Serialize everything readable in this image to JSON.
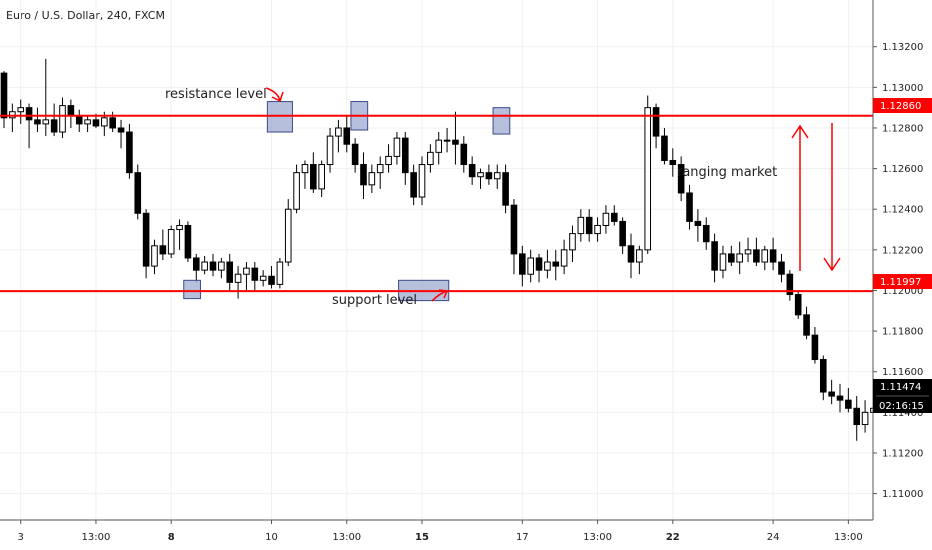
{
  "chart_data": {
    "type": "candlestick",
    "title": "Euro / U.S. Dollar, 240, FXCM",
    "y_ticks": [
      1.11,
      1.112,
      1.114,
      1.116,
      1.118,
      1.12,
      1.122,
      1.124,
      1.126,
      1.128,
      1.13,
      1.132
    ],
    "y_tick_labels": [
      "1.11000",
      "1.11200",
      "1.11400",
      "1.11600",
      "1.11800",
      "1.12000",
      "1.12200",
      "1.12400",
      "1.12600",
      "1.12800",
      "1.13000",
      "1.13200"
    ],
    "ylim": [
      1.1087,
      1.1343
    ],
    "x_ticks": [
      {
        "i": 2,
        "label": "3",
        "bold": false
      },
      {
        "i": 11,
        "label": "13:00",
        "bold": false
      },
      {
        "i": 20,
        "label": "8",
        "bold": true
      },
      {
        "i": 32,
        "label": "10",
        "bold": false
      },
      {
        "i": 41,
        "label": "13:00",
        "bold": false
      },
      {
        "i": 50,
        "label": "15",
        "bold": true
      },
      {
        "i": 62,
        "label": "17",
        "bold": false
      },
      {
        "i": 71,
        "label": "13:00",
        "bold": false
      },
      {
        "i": 80,
        "label": "22",
        "bold": true
      },
      {
        "i": 92,
        "label": "24",
        "bold": false
      },
      {
        "i": 101,
        "label": "13:00",
        "bold": false
      }
    ],
    "candles": [
      [
        1.1307,
        1.1308,
        1.128,
        1.1285
      ],
      [
        1.1285,
        1.1292,
        1.1278,
        1.1288
      ],
      [
        1.1288,
        1.1294,
        1.1282,
        1.129
      ],
      [
        1.129,
        1.1292,
        1.127,
        1.1284
      ],
      [
        1.1284,
        1.129,
        1.1278,
        1.1282
      ],
      [
        1.1282,
        1.1314,
        1.1276,
        1.1284
      ],
      [
        1.1284,
        1.1292,
        1.1276,
        1.1278
      ],
      [
        1.1278,
        1.1295,
        1.1275,
        1.1291
      ],
      [
        1.1291,
        1.1294,
        1.128,
        1.1286
      ],
      [
        1.1286,
        1.1289,
        1.1278,
        1.1282
      ],
      [
        1.1282,
        1.1286,
        1.1278,
        1.1284
      ],
      [
        1.1284,
        1.1287,
        1.128,
        1.1281
      ],
      [
        1.1281,
        1.1288,
        1.1276,
        1.1285
      ],
      [
        1.1285,
        1.1288,
        1.1278,
        1.128
      ],
      [
        1.128,
        1.1284,
        1.127,
        1.1278
      ],
      [
        1.1278,
        1.1282,
        1.1255,
        1.1258
      ],
      [
        1.1258,
        1.1262,
        1.1235,
        1.1238
      ],
      [
        1.1238,
        1.124,
        1.1206,
        1.1212
      ],
      [
        1.1212,
        1.1225,
        1.1208,
        1.1222
      ],
      [
        1.1222,
        1.123,
        1.1215,
        1.1218
      ],
      [
        1.1218,
        1.1232,
        1.1216,
        1.123
      ],
      [
        1.123,
        1.1235,
        1.122,
        1.1232
      ],
      [
        1.1232,
        1.1234,
        1.1214,
        1.1216
      ],
      [
        1.1216,
        1.1218,
        1.1204,
        1.121
      ],
      [
        1.121,
        1.1217,
        1.1208,
        1.1214
      ],
      [
        1.1214,
        1.1218,
        1.1207,
        1.121
      ],
      [
        1.121,
        1.1216,
        1.1206,
        1.1214
      ],
      [
        1.1214,
        1.1218,
        1.12,
        1.1204
      ],
      [
        1.1204,
        1.1212,
        1.1196,
        1.1208
      ],
      [
        1.1208,
        1.1214,
        1.12,
        1.1211
      ],
      [
        1.1211,
        1.1214,
        1.12,
        1.1205
      ],
      [
        1.1205,
        1.121,
        1.1202,
        1.1207
      ],
      [
        1.1207,
        1.1212,
        1.1201,
        1.1203
      ],
      [
        1.1203,
        1.1216,
        1.1201,
        1.1214
      ],
      [
        1.1214,
        1.1245,
        1.1212,
        1.124
      ],
      [
        1.124,
        1.1262,
        1.1238,
        1.1258
      ],
      [
        1.1258,
        1.1264,
        1.125,
        1.1262
      ],
      [
        1.1262,
        1.1268,
        1.1248,
        1.125
      ],
      [
        1.125,
        1.1264,
        1.1246,
        1.1262
      ],
      [
        1.1262,
        1.128,
        1.1258,
        1.1276
      ],
      [
        1.1276,
        1.1284,
        1.1268,
        1.128
      ],
      [
        1.128,
        1.1286,
        1.1268,
        1.1272
      ],
      [
        1.1272,
        1.1275,
        1.1258,
        1.1262
      ],
      [
        1.1262,
        1.1268,
        1.1245,
        1.1252
      ],
      [
        1.1252,
        1.1262,
        1.1248,
        1.1258
      ],
      [
        1.1258,
        1.1266,
        1.125,
        1.1262
      ],
      [
        1.1262,
        1.1272,
        1.1258,
        1.1266
      ],
      [
        1.1266,
        1.1278,
        1.1262,
        1.1275
      ],
      [
        1.1275,
        1.1278,
        1.1252,
        1.1258
      ],
      [
        1.1258,
        1.1262,
        1.1242,
        1.1246
      ],
      [
        1.1246,
        1.1266,
        1.1242,
        1.1262
      ],
      [
        1.1262,
        1.1272,
        1.1258,
        1.1268
      ],
      [
        1.1268,
        1.1278,
        1.1262,
        1.1274
      ],
      [
        1.1274,
        1.128,
        1.1268,
        1.1274
      ],
      [
        1.1274,
        1.1288,
        1.1262,
        1.1272
      ],
      [
        1.1272,
        1.1276,
        1.1258,
        1.1262
      ],
      [
        1.1262,
        1.1266,
        1.1252,
        1.1256
      ],
      [
        1.1256,
        1.126,
        1.125,
        1.1258
      ],
      [
        1.1258,
        1.1262,
        1.1252,
        1.1255
      ],
      [
        1.1255,
        1.1262,
        1.125,
        1.1258
      ],
      [
        1.1258,
        1.1262,
        1.1238,
        1.1242
      ],
      [
        1.1242,
        1.1245,
        1.1208,
        1.1218
      ],
      [
        1.1218,
        1.1222,
        1.1202,
        1.1208
      ],
      [
        1.1208,
        1.122,
        1.1204,
        1.1216
      ],
      [
        1.1216,
        1.1218,
        1.1204,
        1.121
      ],
      [
        1.121,
        1.122,
        1.1206,
        1.1214
      ],
      [
        1.1214,
        1.122,
        1.1205,
        1.1212
      ],
      [
        1.1212,
        1.1225,
        1.1208,
        1.122
      ],
      [
        1.122,
        1.1232,
        1.1214,
        1.1228
      ],
      [
        1.1228,
        1.124,
        1.1224,
        1.1236
      ],
      [
        1.1236,
        1.124,
        1.1224,
        1.1228
      ],
      [
        1.1228,
        1.1236,
        1.1224,
        1.1232
      ],
      [
        1.1232,
        1.1242,
        1.1228,
        1.1238
      ],
      [
        1.1238,
        1.1242,
        1.1232,
        1.1234
      ],
      [
        1.1234,
        1.1236,
        1.1218,
        1.1222
      ],
      [
        1.1222,
        1.1228,
        1.1206,
        1.1214
      ],
      [
        1.1214,
        1.1222,
        1.1208,
        1.122
      ],
      [
        1.122,
        1.1296,
        1.1218,
        1.129
      ],
      [
        1.129,
        1.1292,
        1.127,
        1.1276
      ],
      [
        1.1276,
        1.128,
        1.1262,
        1.1264
      ],
      [
        1.1264,
        1.127,
        1.1256,
        1.1262
      ],
      [
        1.1262,
        1.1266,
        1.1244,
        1.1248
      ],
      [
        1.1248,
        1.1252,
        1.123,
        1.1234
      ],
      [
        1.1234,
        1.124,
        1.1224,
        1.1232
      ],
      [
        1.1232,
        1.1236,
        1.122,
        1.1224
      ],
      [
        1.1224,
        1.1228,
        1.1204,
        1.121
      ],
      [
        1.121,
        1.1222,
        1.1206,
        1.1218
      ],
      [
        1.1218,
        1.1222,
        1.1212,
        1.1214
      ],
      [
        1.1214,
        1.1224,
        1.1208,
        1.1218
      ],
      [
        1.1218,
        1.1226,
        1.1214,
        1.122
      ],
      [
        1.122,
        1.1226,
        1.1212,
        1.1214
      ],
      [
        1.1214,
        1.1222,
        1.121,
        1.122
      ],
      [
        1.122,
        1.1226,
        1.121,
        1.1214
      ],
      [
        1.1214,
        1.1218,
        1.1204,
        1.1208
      ],
      [
        1.1208,
        1.121,
        1.1195,
        1.1198
      ],
      [
        1.1198,
        1.12,
        1.1186,
        1.1188
      ],
      [
        1.1188,
        1.1192,
        1.1176,
        1.1178
      ],
      [
        1.1178,
        1.1182,
        1.1164,
        1.1166
      ],
      [
        1.1166,
        1.1168,
        1.1146,
        1.115
      ],
      [
        1.115,
        1.1156,
        1.1144,
        1.1148
      ],
      [
        1.1148,
        1.1154,
        1.114,
        1.1146
      ],
      [
        1.1146,
        1.1152,
        1.114,
        1.1142
      ],
      [
        1.1142,
        1.1148,
        1.1126,
        1.1134
      ],
      [
        1.1134,
        1.1146,
        1.113,
        1.114
      ],
      [
        1.114,
        1.1148,
        1.1136,
        1.1142
      ],
      [
        1.1142,
        1.1146,
        1.113,
        1.1136
      ],
      [
        1.1136,
        1.1148,
        1.1132,
        1.114
      ],
      [
        1.114,
        1.1144,
        1.113,
        1.1132
      ],
      [
        1.1132,
        1.1138,
        1.1124,
        1.1128
      ],
      [
        1.1128,
        1.1132,
        1.1118,
        1.1124
      ],
      [
        1.1124,
        1.1152,
        1.1102,
        1.1148
      ],
      [
        1.1148,
        1.1156,
        1.1126,
        1.113
      ],
      [
        1.113,
        1.115,
        1.1126,
        1.1144
      ],
      [
        1.1144,
        1.115,
        1.1132,
        1.11474
      ]
    ],
    "levels": [
      {
        "name": "resistance",
        "value": 1.1286,
        "label": "1.12860",
        "color": "#ff0000"
      },
      {
        "name": "support",
        "value": 1.11997,
        "label": "1.11997",
        "color": "#ff0000"
      }
    ],
    "last_price": {
      "value": 1.11474,
      "label": "1.11474",
      "countdown": "02:16:15",
      "color": "#000000"
    },
    "annotations": {
      "resistance": "resistance level",
      "support": "support level",
      "ranging": "ranging market"
    },
    "highlight_boxes": [
      {
        "i0": 21.5,
        "i1": 23.5,
        "p0": 1.1196,
        "p1": 1.1205
      },
      {
        "i0": 31.5,
        "i1": 34.5,
        "p0": 1.1278,
        "p1": 1.1293
      },
      {
        "i0": 41.5,
        "i1": 43.5,
        "p0": 1.1279,
        "p1": 1.1293
      },
      {
        "i0": 47.2,
        "i1": 53.2,
        "p0": 1.1195,
        "p1": 1.1205
      },
      {
        "i0": 58.5,
        "i1": 60.5,
        "p0": 1.1277,
        "p1": 1.129
      }
    ],
    "colors": {
      "up": "#ffffff",
      "down": "#000000",
      "outline": "#000000",
      "highlight_fill": "#9da9cf",
      "highlight_stroke": "#3c4a8c",
      "grid": "#eef0f3",
      "arrow": "#ff0000"
    },
    "grid": true
  }
}
